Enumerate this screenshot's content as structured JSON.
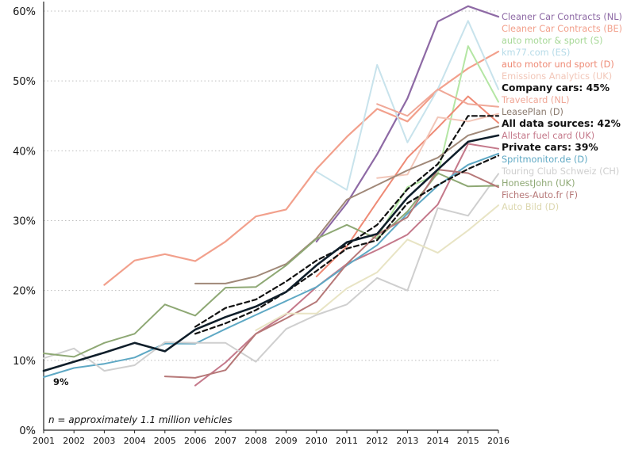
{
  "chart_data": {
    "type": "line",
    "title": "",
    "xlabel": "",
    "ylabel": "",
    "x": [
      2001,
      2002,
      2003,
      2004,
      2005,
      2006,
      2007,
      2008,
      2009,
      2010,
      2011,
      2012,
      2013,
      2014,
      2015,
      2016
    ],
    "ylim": [
      0,
      60
    ],
    "yticks": [
      "0%",
      "10%",
      "20%",
      "30%",
      "40%",
      "50%",
      "60%"
    ],
    "xticks": [
      "2001",
      "2002",
      "2003",
      "2004",
      "2005",
      "2006",
      "2007",
      "2008",
      "2009",
      "2010",
      "2011",
      "2012",
      "2013",
      "2014",
      "2015",
      "2016"
    ],
    "grid": "horizontal dotted",
    "legend": "labels at right end of lines",
    "annotations": {
      "note": "n = approximately 1.1 million vehicles",
      "start_value": "9%"
    },
    "series": [
      {
        "name": "Cleaner Car Contracts (NL)",
        "color": "#8e6aa5",
        "width": 2.2,
        "values": [
          null,
          null,
          null,
          null,
          null,
          null,
          null,
          null,
          null,
          27.0,
          32.5,
          39.5,
          47.5,
          58.5,
          60.7,
          59.2
        ]
      },
      {
        "name": "Cleaner Car Contracts (BE)",
        "color": "#f2a08c",
        "width": 2.2,
        "values": [
          null,
          null,
          20.8,
          24.3,
          25.2,
          24.2,
          27.0,
          30.6,
          31.6,
          37.4,
          42.0,
          46.0,
          44.2,
          48.7,
          51.8,
          54.2
        ]
      },
      {
        "name": "auto motor & sport (S)",
        "color": "#b4e6a4",
        "width": 2.0,
        "values": [
          null,
          null,
          null,
          null,
          null,
          null,
          null,
          null,
          null,
          null,
          null,
          27.6,
          34.8,
          36.6,
          55.0,
          47.0
        ]
      },
      {
        "name": "km77.com (ES)",
        "color": "#c8e3ec",
        "width": 2.0,
        "values": [
          null,
          null,
          null,
          null,
          null,
          null,
          null,
          null,
          null,
          37.0,
          34.4,
          52.3,
          41.2,
          48.8,
          58.6,
          48.8
        ]
      },
      {
        "name": "auto motor und sport (D)",
        "color": "#ee8a75",
        "width": 2.0,
        "values": [
          null,
          null,
          null,
          null,
          null,
          null,
          null,
          null,
          null,
          22.0,
          26.3,
          32.7,
          39.0,
          43.3,
          47.8,
          44.0
        ]
      },
      {
        "name": "Emissions Analytics (UK)",
        "color": "#f2c6b8",
        "width": 2.0,
        "values": [
          null,
          null,
          null,
          null,
          null,
          null,
          null,
          null,
          null,
          null,
          null,
          36.1,
          36.6,
          44.8,
          44.2,
          45.3
        ]
      },
      {
        "name": "Travelcard (NL)",
        "color": "#f0a898",
        "width": 2.0,
        "values": [
          null,
          null,
          null,
          null,
          null,
          null,
          null,
          null,
          null,
          null,
          null,
          46.7,
          45.0,
          48.8,
          46.7,
          46.3
        ]
      },
      {
        "name": "LeasePlan (D)",
        "color": "#a08878",
        "width": 2.0,
        "values": [
          null,
          null,
          null,
          null,
          null,
          21.0,
          21.0,
          22.0,
          23.8,
          27.5,
          33.0,
          35.1,
          37.2,
          39.0,
          42.2,
          43.5
        ]
      },
      {
        "name": "Allstar fuel card (UK)",
        "color": "#c4788a",
        "width": 2.0,
        "values": [
          null,
          null,
          null,
          null,
          null,
          6.4,
          9.7,
          13.8,
          16.6,
          20.5,
          23.8,
          25.8,
          28.0,
          32.3,
          41.0,
          40.3
        ]
      },
      {
        "name": "Spritmonitor.de (D)",
        "color": "#5ea8c4",
        "width": 2.0,
        "values": [
          7.6,
          8.9,
          9.5,
          10.4,
          12.4,
          12.4,
          14.5,
          16.5,
          18.5,
          20.5,
          23.6,
          26.5,
          31.0,
          35.0,
          38.0,
          39.6
        ]
      },
      {
        "name": "Touring Club Schweiz (CH)",
        "color": "#cfcfcf",
        "width": 2.0,
        "values": [
          10.3,
          11.7,
          8.5,
          9.3,
          12.6,
          12.5,
          12.5,
          9.8,
          14.5,
          16.5,
          18.0,
          21.8,
          20.0,
          31.8,
          30.7,
          36.7
        ]
      },
      {
        "name": "HonestJohn (UK)",
        "color": "#8ea874",
        "width": 2.0,
        "values": [
          11.0,
          10.5,
          12.5,
          13.8,
          18.0,
          16.4,
          20.4,
          20.5,
          23.6,
          27.4,
          29.4,
          27.4,
          31.3,
          36.8,
          34.9,
          35.0
        ]
      },
      {
        "name": "Fiches-Auto.fr (F)",
        "color": "#b67878",
        "width": 2.0,
        "values": [
          null,
          null,
          null,
          null,
          7.7,
          7.5,
          8.6,
          13.8,
          16.0,
          18.4,
          23.8,
          28.0,
          30.5,
          37.3,
          36.8,
          34.8
        ]
      },
      {
        "name": "Auto Bild (D)",
        "color": "#e8e4c4",
        "width": 2.0,
        "values": [
          null,
          null,
          null,
          null,
          null,
          null,
          null,
          14.3,
          16.7,
          16.7,
          20.3,
          22.6,
          27.3,
          25.4,
          28.6,
          32.2
        ]
      },
      {
        "name": "Company cars: 45%",
        "color": "#111111",
        "width": 2.2,
        "dash": "6,4",
        "values": [
          null,
          null,
          null,
          null,
          null,
          14.8,
          17.5,
          18.7,
          21.3,
          24.3,
          26.5,
          29.4,
          34.5,
          38.1,
          45.0,
          45.0
        ]
      },
      {
        "name": "Private cars: 39%",
        "color": "#111111",
        "width": 2.2,
        "dash": "6,4",
        "values": [
          null,
          null,
          null,
          null,
          null,
          13.8,
          15.3,
          17.2,
          19.8,
          22.8,
          26.0,
          27.2,
          32.5,
          35.1,
          37.4,
          39.3
        ]
      },
      {
        "name": "All data sources: 42%",
        "color": "#0f1e2a",
        "width": 2.6,
        "values": [
          8.5,
          9.8,
          11.1,
          12.5,
          11.3,
          14.4,
          16.2,
          17.7,
          19.8,
          23.6,
          26.9,
          28.1,
          33.3,
          37.3,
          41.3,
          42.2
        ]
      }
    ],
    "right_labels": [
      {
        "text": "Cleaner Car Contracts (NL)",
        "color": "#8e6aa5",
        "bold": false
      },
      {
        "text": "Cleaner Car Contracts (BE)",
        "color": "#f2a08c",
        "bold": false
      },
      {
        "text": "auto motor & sport (S)",
        "color": "#a6d896",
        "bold": false
      },
      {
        "text": "km77.com (ES)",
        "color": "#b6dbe8",
        "bold": false
      },
      {
        "text": "auto motor und sport (D)",
        "color": "#ee8a75",
        "bold": false
      },
      {
        "text": "Emissions Analytics (UK)",
        "color": "#f2c6b8",
        "bold": false
      },
      {
        "text": "Company cars: 45%",
        "color": "#111111",
        "bold": true
      },
      {
        "text": "Travelcard (NL)",
        "color": "#f0a898",
        "bold": false
      },
      {
        "text": "LeasePlan (D)",
        "color": "#8a7a6e",
        "bold": false
      },
      {
        "text": "All data sources: 42%",
        "color": "#111111",
        "bold": true
      },
      {
        "text": "Allstar fuel card (UK)",
        "color": "#c4788a",
        "bold": false
      },
      {
        "text": "Private cars: 39%",
        "color": "#111111",
        "bold": true
      },
      {
        "text": "Spritmonitor.de (D)",
        "color": "#5ea8c4",
        "bold": false
      },
      {
        "text": "Touring Club Schweiz (CH)",
        "color": "#cfcfcf",
        "bold": false
      },
      {
        "text": "HonestJohn (UK)",
        "color": "#8ea874",
        "bold": false
      },
      {
        "text": "Fiches-Auto.fr (F)",
        "color": "#b67878",
        "bold": false
      },
      {
        "text": "Auto Bild (D)",
        "color": "#ddd8b0",
        "bold": false
      }
    ]
  }
}
